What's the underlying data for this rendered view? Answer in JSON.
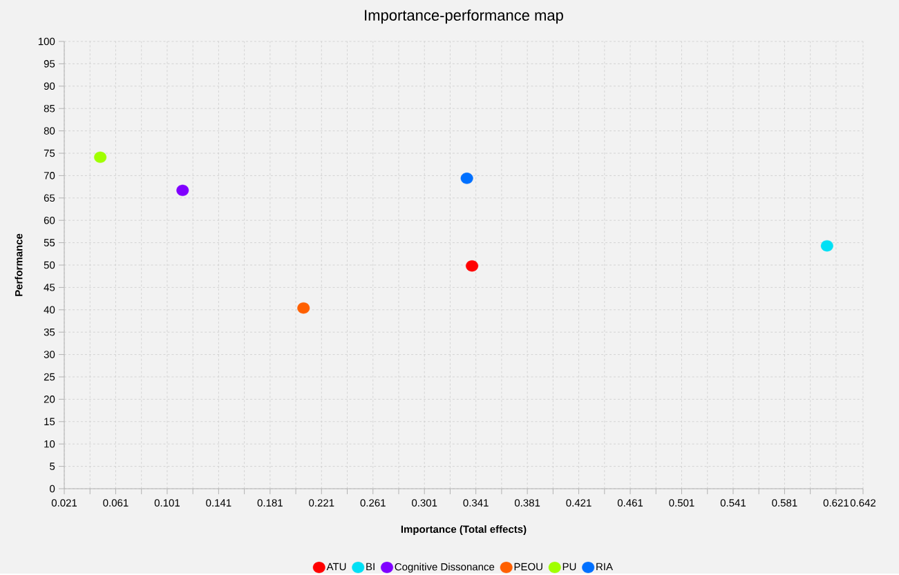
{
  "chart_data": {
    "type": "scatter",
    "title": "Importance-performance map",
    "xlabel": "Importance (Total effects)",
    "ylabel": "Performance",
    "xlim": [
      0.021,
      0.642
    ],
    "xticks": [
      0.021,
      0.061,
      0.101,
      0.141,
      0.181,
      0.221,
      0.261,
      0.301,
      0.341,
      0.381,
      0.421,
      0.461,
      0.501,
      0.541,
      0.581,
      0.621,
      0.642
    ],
    "ylim": [
      0,
      100
    ],
    "yticks": [
      0,
      5,
      10,
      15,
      20,
      25,
      30,
      35,
      40,
      45,
      50,
      55,
      60,
      65,
      70,
      75,
      80,
      85,
      90,
      95,
      100
    ],
    "grid": true,
    "legend": "bottom",
    "marker": "circle",
    "series": [
      {
        "name": "ATU",
        "color": "#ff0000",
        "x": [
          0.338
        ],
        "values": [
          49.8
        ]
      },
      {
        "name": "BI",
        "color": "#00e0f5",
        "x": [
          0.614
        ],
        "values": [
          54.3
        ]
      },
      {
        "name": "Cognitive Dissonance",
        "color": "#8000ff",
        "x": [
          0.113
        ],
        "values": [
          66.7
        ]
      },
      {
        "name": "PEOU",
        "color": "#ff6000",
        "x": [
          0.207
        ],
        "values": [
          40.4
        ]
      },
      {
        "name": "PU",
        "color": "#a0ff00",
        "x": [
          0.049
        ],
        "values": [
          74.1
        ]
      },
      {
        "name": "RIA",
        "color": "#0070ff",
        "x": [
          0.334
        ],
        "values": [
          69.4
        ]
      }
    ]
  }
}
